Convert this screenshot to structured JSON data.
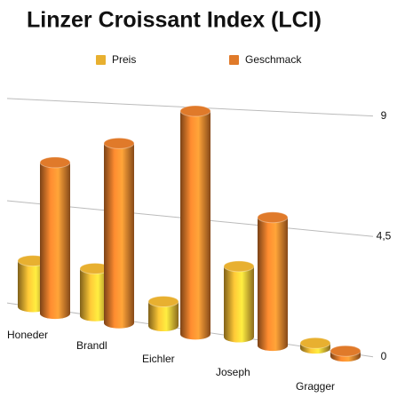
{
  "chart_data": {
    "type": "bar3d",
    "title": "Linzer Croissant Index (LCI)",
    "categories": [
      "Honeder",
      "Brandl",
      "Eichler",
      "Joseph",
      "Gragger"
    ],
    "series": [
      {
        "name": "Preis",
        "color": "#e8b030",
        "values": [
          2,
          2,
          1,
          2.8,
          0.2
        ]
      },
      {
        "name": "Geschmack",
        "color": "#e07a2a",
        "values": [
          6.5,
          7.5,
          9,
          5,
          0.2
        ]
      }
    ],
    "ylim": [
      0,
      9
    ],
    "yticks": [
      0,
      {
        "value": 4.5,
        "label": "4,5"
      },
      9
    ],
    "grid": true
  }
}
